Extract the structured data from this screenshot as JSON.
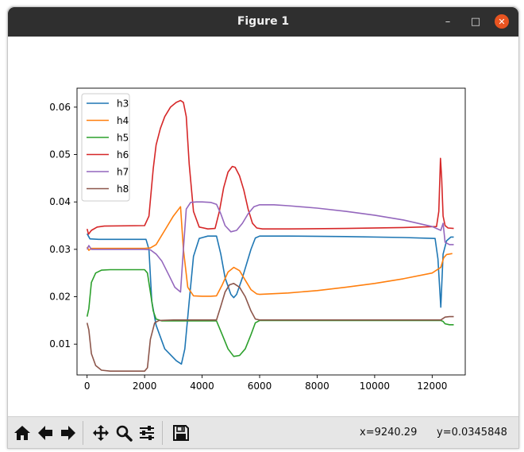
{
  "window": {
    "title": "Figure 1",
    "minimize_glyph": "–",
    "maximize_glyph": "□",
    "close_glyph": "✕"
  },
  "toolbar": {
    "buttons": [
      {
        "name": "home-button",
        "icon": "home-icon",
        "label": "Home"
      },
      {
        "name": "back-button",
        "icon": "arrow-left-icon",
        "label": "Back"
      },
      {
        "name": "forward-button",
        "icon": "arrow-right-icon",
        "label": "Forward"
      },
      {
        "name": "pan-button",
        "icon": "move-icon",
        "label": "Pan"
      },
      {
        "name": "zoom-button",
        "icon": "magnifier-icon",
        "label": "Zoom"
      },
      {
        "name": "configure-subplots-button",
        "icon": "sliders-icon",
        "label": "Configure subplots"
      },
      {
        "name": "save-button",
        "icon": "floppy-icon",
        "label": "Save"
      }
    ],
    "coord_x": "x=9240.29",
    "coord_y": "y=0.0345848"
  },
  "chart_data": {
    "type": "line",
    "xlim": [
      -350,
      13150
    ],
    "ylim": [
      0.0035,
      0.064
    ],
    "xticks": [
      0,
      2000,
      4000,
      6000,
      8000,
      10000,
      12000
    ],
    "xtick_labels": [
      "0",
      "2000",
      "4000",
      "6000",
      "8000",
      "10000",
      "12000"
    ],
    "yticks": [
      0.01,
      0.02,
      0.03,
      0.04,
      0.05,
      0.06
    ],
    "ytick_labels": [
      "0.01",
      "0.02",
      "0.03",
      "0.04",
      "0.05",
      "0.06"
    ],
    "grid": false,
    "legend_position": "upper-left",
    "series": [
      {
        "name": "h3",
        "color": "#1f77b4",
        "x": [
          0,
          100,
          400,
          2050,
          2150,
          2250,
          2400,
          2700,
          3100,
          3280,
          3400,
          3550,
          3700,
          3900,
          4200,
          4500,
          4650,
          4800,
          5000,
          5100,
          5200,
          5400,
          5700,
          5850,
          6000,
          7000,
          9000,
          11000,
          12100,
          12200,
          12300,
          12380,
          12500,
          12650,
          12750
        ],
        "y": [
          0.0333,
          0.0322,
          0.0321,
          0.0321,
          0.03,
          0.019,
          0.014,
          0.009,
          0.0065,
          0.0058,
          0.009,
          0.019,
          0.0285,
          0.0323,
          0.0328,
          0.0328,
          0.029,
          0.024,
          0.0205,
          0.0198,
          0.0205,
          0.024,
          0.03,
          0.0324,
          0.0328,
          0.0328,
          0.0327,
          0.0325,
          0.0323,
          0.028,
          0.0178,
          0.029,
          0.0318,
          0.0326,
          0.0326
        ]
      },
      {
        "name": "h4",
        "color": "#ff7f0e",
        "x": [
          0,
          60,
          150,
          400,
          2000,
          2200,
          2400,
          2700,
          3000,
          3250,
          3350,
          3500,
          3700,
          4000,
          4300,
          4500,
          4700,
          4900,
          5100,
          5300,
          5500,
          5700,
          5900,
          6000,
          7000,
          8000,
          9000,
          10000,
          11000,
          12000,
          12300,
          12400,
          12500,
          12700
        ],
        "y": [
          0.0305,
          0.0298,
          0.0302,
          0.0302,
          0.0302,
          0.0303,
          0.031,
          0.034,
          0.037,
          0.039,
          0.03,
          0.022,
          0.0202,
          0.0201,
          0.0201,
          0.0202,
          0.0225,
          0.0252,
          0.0262,
          0.0255,
          0.0235,
          0.0215,
          0.0206,
          0.0205,
          0.0208,
          0.0213,
          0.022,
          0.0228,
          0.0238,
          0.025,
          0.0262,
          0.0282,
          0.0289,
          0.0291
        ]
      },
      {
        "name": "h5",
        "color": "#2ca02c",
        "x": [
          0,
          60,
          150,
          300,
          500,
          800,
          2000,
          2100,
          2200,
          2300,
          2400,
          2600,
          3000,
          4000,
          4500,
          4700,
          4900,
          5100,
          5300,
          5500,
          5700,
          5850,
          6000,
          7000,
          9000,
          11000,
          12300,
          12380,
          12450,
          12600,
          12750
        ],
        "y": [
          0.0158,
          0.0175,
          0.023,
          0.025,
          0.0256,
          0.0257,
          0.0257,
          0.025,
          0.021,
          0.017,
          0.0153,
          0.0149,
          0.0149,
          0.0149,
          0.0149,
          0.012,
          0.009,
          0.0074,
          0.0076,
          0.009,
          0.012,
          0.0145,
          0.015,
          0.015,
          0.015,
          0.015,
          0.015,
          0.0148,
          0.0143,
          0.0141,
          0.0141
        ]
      },
      {
        "name": "h6",
        "color": "#d62728",
        "x": [
          0,
          50,
          150,
          350,
          600,
          2000,
          2150,
          2300,
          2400,
          2550,
          2700,
          2900,
          3100,
          3250,
          3350,
          3450,
          3550,
          3700,
          3900,
          4200,
          4450,
          4600,
          4750,
          4900,
          5050,
          5150,
          5300,
          5450,
          5600,
          5750,
          5900,
          6100,
          7000,
          9000,
          11000,
          12150,
          12230,
          12290,
          12330,
          12380,
          12450,
          12550,
          12750
        ],
        "y": [
          0.0343,
          0.0332,
          0.034,
          0.0347,
          0.0349,
          0.035,
          0.037,
          0.047,
          0.052,
          0.0555,
          0.058,
          0.06,
          0.061,
          0.0614,
          0.061,
          0.058,
          0.048,
          0.038,
          0.0347,
          0.0343,
          0.0344,
          0.038,
          0.043,
          0.0463,
          0.0475,
          0.0473,
          0.0455,
          0.0425,
          0.0385,
          0.0355,
          0.0345,
          0.0343,
          0.0343,
          0.0344,
          0.0346,
          0.0348,
          0.038,
          0.0492,
          0.045,
          0.037,
          0.035,
          0.0345,
          0.0344
        ]
      },
      {
        "name": "h7",
        "color": "#9467bd",
        "x": [
          0,
          60,
          150,
          400,
          2000,
          2200,
          2400,
          2600,
          2850,
          3050,
          3250,
          3350,
          3450,
          3600,
          3800,
          4000,
          4300,
          4500,
          4650,
          4800,
          5000,
          5200,
          5400,
          5600,
          5800,
          6000,
          6500,
          7000,
          8000,
          9000,
          10000,
          11000,
          12000,
          12300,
          12380,
          12450,
          12600,
          12750
        ],
        "y": [
          0.03,
          0.0308,
          0.03,
          0.03,
          0.03,
          0.0299,
          0.029,
          0.0275,
          0.0245,
          0.022,
          0.021,
          0.03,
          0.0385,
          0.0399,
          0.04,
          0.04,
          0.0399,
          0.0395,
          0.0375,
          0.035,
          0.0337,
          0.034,
          0.0355,
          0.0375,
          0.039,
          0.0394,
          0.0394,
          0.0392,
          0.0387,
          0.038,
          0.0372,
          0.0362,
          0.0348,
          0.034,
          0.0355,
          0.0315,
          0.031,
          0.031
        ]
      },
      {
        "name": "h8",
        "color": "#8c564b",
        "x": [
          0,
          60,
          150,
          300,
          500,
          800,
          2000,
          2100,
          2200,
          2350,
          2500,
          3000,
          4000,
          4500,
          4650,
          4800,
          4950,
          5100,
          5300,
          5500,
          5700,
          5850,
          6000,
          7000,
          9000,
          11000,
          12300,
          12450,
          12600,
          12750
        ],
        "y": [
          0.0145,
          0.013,
          0.008,
          0.0055,
          0.0045,
          0.0043,
          0.0043,
          0.005,
          0.011,
          0.0145,
          0.015,
          0.0151,
          0.0151,
          0.0151,
          0.018,
          0.021,
          0.0225,
          0.0228,
          0.022,
          0.02,
          0.017,
          0.0153,
          0.0151,
          0.0151,
          0.0151,
          0.0151,
          0.0151,
          0.0157,
          0.0158,
          0.0158
        ]
      }
    ]
  }
}
